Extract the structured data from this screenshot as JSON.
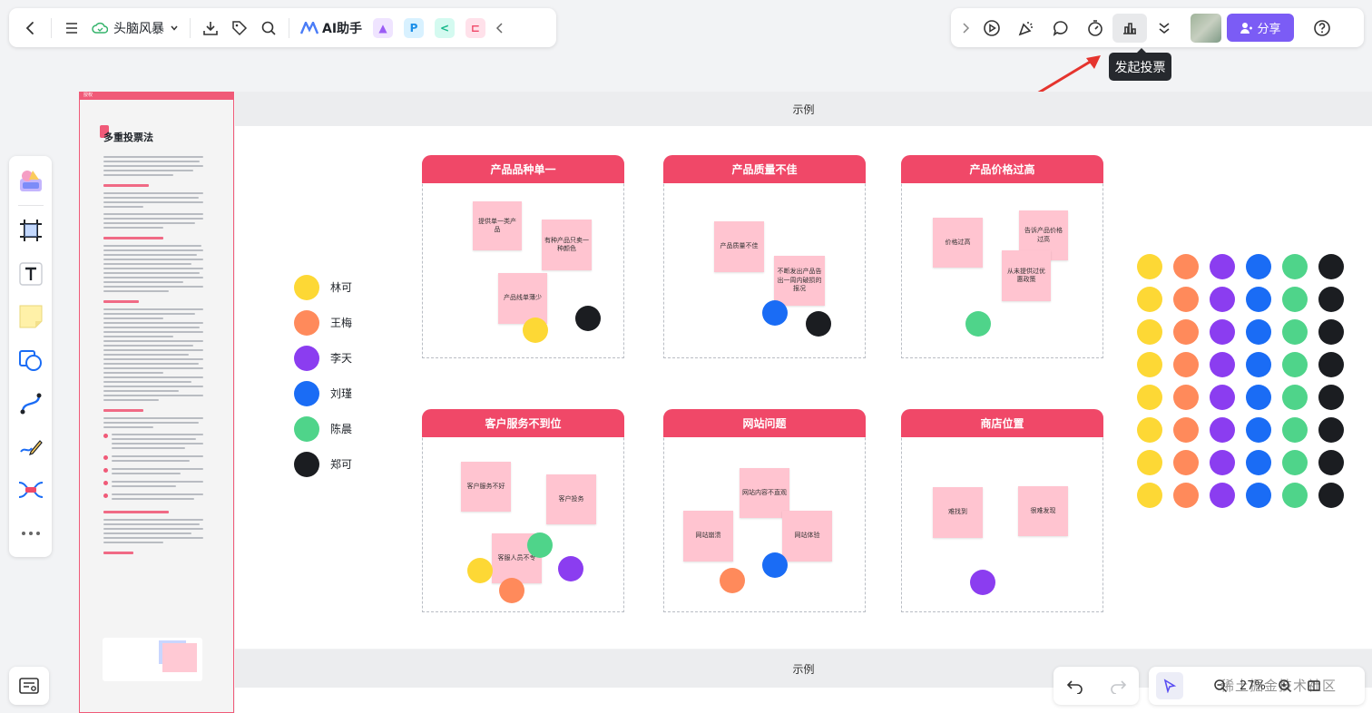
{
  "toolbar": {
    "doc_title": "头脑风暴",
    "ai_label": "AI助手",
    "share_label": "分享"
  },
  "tooltip": "发起投票",
  "doc_panel": {
    "tag": "授权",
    "title": "多重投票法"
  },
  "frames": {
    "top_label": "示例",
    "bottom_label": "示例"
  },
  "cards": [
    {
      "title": "产品品种单一",
      "notes": [
        "提供单一类产品",
        "有种产品只卖一种颜色",
        "产品线单薄少"
      ]
    },
    {
      "title": "产品质量不佳",
      "notes": [
        "产品质量不佳",
        "不断发出产品告出一周内破损的报况"
      ]
    },
    {
      "title": "产品价格过高",
      "notes": [
        "价格过高",
        "告诉产品价格过高",
        "从未提供过优惠政策"
      ]
    },
    {
      "title": "客户服务不到位",
      "notes": [
        "客户服务不好",
        "客户投务",
        "客服人员不专"
      ]
    },
    {
      "title": "网站问题",
      "notes": [
        "网站内容不直观",
        "网站崩溃",
        "网站体验"
      ]
    },
    {
      "title": "商店位置",
      "notes": [
        "难找到",
        "很难发现"
      ]
    }
  ],
  "legend": [
    {
      "name": "林可",
      "color": "#fdd835"
    },
    {
      "name": "王梅",
      "color": "#ff8a5b"
    },
    {
      "name": "李天",
      "color": "#8b3df0"
    },
    {
      "name": "刘瑾",
      "color": "#1a6cf5"
    },
    {
      "name": "陈晨",
      "color": "#4fd48a"
    },
    {
      "name": "郑可",
      "color": "#1b1d21"
    }
  ],
  "zoom": "27%",
  "watermark": "稀土掘金技术社区",
  "colors": {
    "accent": "#f04868",
    "share": "#7b5cf5"
  }
}
